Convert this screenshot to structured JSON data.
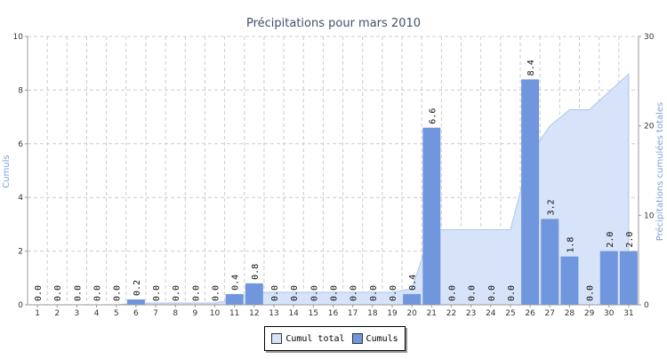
{
  "colors": {
    "bar": "#7096dd",
    "area": "#d6e3f8",
    "area_line": "#aec6ee",
    "grid": "#cccccc",
    "axis": "#999999",
    "title": "#40506a",
    "axis_label": "#7f9fd6"
  },
  "chart_data": {
    "type": "bar",
    "title": "Précipitations pour mars 2010",
    "xlabel": "",
    "ylabel": "Cumuls",
    "y2label": "Précipitations cumulées totales",
    "categories": [
      "1",
      "2",
      "3",
      "4",
      "5",
      "6",
      "7",
      "8",
      "9",
      "10",
      "11",
      "12",
      "13",
      "14",
      "15",
      "16",
      "17",
      "18",
      "19",
      "20",
      "21",
      "22",
      "23",
      "24",
      "25",
      "26",
      "27",
      "28",
      "29",
      "30",
      "31"
    ],
    "ylim": [
      0,
      10
    ],
    "y_ticks": [
      "0",
      "2",
      "4",
      "6",
      "8",
      "10"
    ],
    "y2lim": [
      0,
      30
    ],
    "y2_ticks": [
      "0",
      "10",
      "20",
      "30"
    ],
    "grid": true,
    "legend_position": "bottom",
    "series": [
      {
        "name": "Cumul total",
        "type": "area",
        "axis": "right",
        "values": [
          0.0,
          0.0,
          0.0,
          0.0,
          0.0,
          0.2,
          0.2,
          0.2,
          0.2,
          0.2,
          0.6,
          1.4,
          1.4,
          1.4,
          1.4,
          1.4,
          1.4,
          1.4,
          1.4,
          1.8,
          8.4,
          8.4,
          8.4,
          8.4,
          8.4,
          16.8,
          20.0,
          21.8,
          21.8,
          23.8,
          25.8
        ]
      },
      {
        "name": "Cumuls",
        "type": "bar",
        "axis": "left",
        "values": [
          0.0,
          0.0,
          0.0,
          0.0,
          0.0,
          0.2,
          0.0,
          0.0,
          0.0,
          0.0,
          0.4,
          0.8,
          0.0,
          0.0,
          0.0,
          0.0,
          0.0,
          0.0,
          0.0,
          0.4,
          6.6,
          0.0,
          0.0,
          0.0,
          0.0,
          8.4,
          3.2,
          1.8,
          0.0,
          2.0,
          2.0
        ],
        "labels": [
          "0.0",
          "0.0",
          "0.0",
          "0.0",
          "0.0",
          "0.2",
          "0.0",
          "0.0",
          "0.0",
          "0.0",
          "0.4",
          "0.8",
          "0.0",
          "0.0",
          "0.0",
          "0.0",
          "0.0",
          "0.0",
          "0.0",
          "0.4",
          "6.6",
          "0.0",
          "0.0",
          "0.0",
          "0.0",
          "8.4",
          "3.2",
          "1.8",
          "0.0",
          "2.0",
          "2.0"
        ]
      }
    ]
  }
}
